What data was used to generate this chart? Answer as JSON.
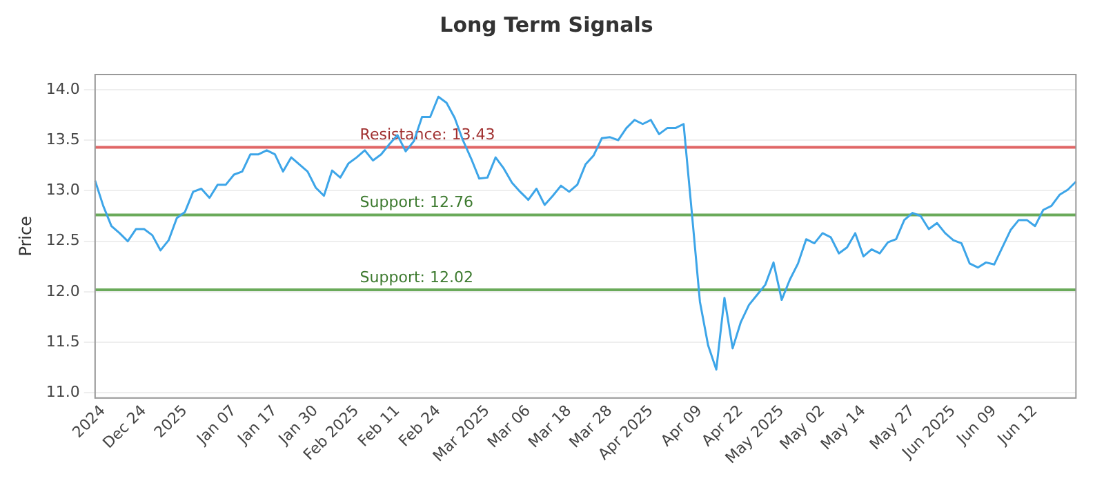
{
  "chart_data": {
    "type": "line",
    "title": "Long Term Signals",
    "ylabel": "Price",
    "categories": [
      null,
      "2024",
      null,
      null,
      null,
      null,
      "Dec 24",
      null,
      null,
      null,
      null,
      "2025",
      null,
      null,
      null,
      null,
      null,
      "Jan 07",
      null,
      null,
      null,
      null,
      "Jan 17",
      null,
      null,
      null,
      null,
      "Jan 30",
      null,
      null,
      null,
      null,
      "Feb 2025",
      null,
      null,
      null,
      null,
      "Feb 11",
      null,
      null,
      null,
      null,
      "Feb 24",
      null,
      null,
      null,
      null,
      null,
      "Mar 2025",
      null,
      null,
      null,
      null,
      "Mar 06",
      null,
      null,
      null,
      null,
      "Mar 18",
      null,
      null,
      null,
      null,
      "Mar 28",
      null,
      null,
      null,
      null,
      "Apr 2025",
      null,
      null,
      null,
      null,
      null,
      "Apr 09",
      null,
      null,
      null,
      null,
      "Apr 22",
      null,
      null,
      null,
      null,
      "May 2025",
      null,
      null,
      null,
      null,
      "May 02",
      null,
      null,
      null,
      null,
      "May 14",
      null,
      null,
      null,
      null,
      null,
      "May 27",
      null,
      null,
      null,
      null,
      "Jun 2025",
      null,
      null,
      null,
      null,
      "Jun 09",
      null,
      null,
      null,
      null,
      "Jun 12",
      null,
      null,
      null,
      null,
      null
    ],
    "series": [
      {
        "color": "#3da5e8",
        "values": [
          13.1,
          12.85,
          12.65,
          12.58,
          12.5,
          12.62,
          12.62,
          12.56,
          12.41,
          12.51,
          12.73,
          12.79,
          12.99,
          13.02,
          12.93,
          13.06,
          13.06,
          13.16,
          13.19,
          13.36,
          13.36,
          13.4,
          13.36,
          13.19,
          13.33,
          13.26,
          13.19,
          13.03,
          12.95,
          13.2,
          13.13,
          13.27,
          13.33,
          13.4,
          13.3,
          13.36,
          13.46,
          13.55,
          13.39,
          13.49,
          13.73,
          13.73,
          13.93,
          13.87,
          13.72,
          13.5,
          13.32,
          13.12,
          13.13,
          13.33,
          13.22,
          13.08,
          12.99,
          12.91,
          13.02,
          12.86,
          12.95,
          13.05,
          12.99,
          13.06,
          13.26,
          13.35,
          13.52,
          13.53,
          13.5,
          13.62,
          13.7,
          13.66,
          13.7,
          13.56,
          13.62,
          13.62,
          13.66,
          12.79,
          11.9,
          11.47,
          11.23,
          11.94,
          11.44,
          11.7,
          11.87,
          11.97,
          12.07,
          12.29,
          11.92,
          12.12,
          12.28,
          12.52,
          12.48,
          12.58,
          12.54,
          12.38,
          12.44,
          12.58,
          12.35,
          12.42,
          12.38,
          12.49,
          12.52,
          12.71,
          12.78,
          12.75,
          12.62,
          12.68,
          12.58,
          12.51,
          12.48,
          12.28,
          12.24,
          12.29,
          12.27,
          12.44,
          12.61,
          12.71,
          12.71,
          12.65,
          12.81,
          12.85,
          12.96,
          13.01,
          13.09
        ]
      }
    ],
    "ylim": [
      10.95,
      14.15
    ],
    "yticks": [
      {
        "value": 11,
        "label": "11.0"
      },
      {
        "value": 11.5,
        "label": "11.5"
      },
      {
        "value": 12,
        "label": "12.0"
      },
      {
        "value": 12.5,
        "label": "12.5"
      },
      {
        "value": 13,
        "label": "13.0"
      },
      {
        "value": 13.5,
        "label": "13.5"
      },
      {
        "value": 14,
        "label": "14.0"
      }
    ],
    "grid": "y",
    "legend": false,
    "marker": "none",
    "line_style": "solid",
    "ref_lines": [
      {
        "axis": "y",
        "value": 13.43,
        "label": "Resistance: 13.43",
        "color": "#e06666"
      },
      {
        "axis": "y",
        "value": 12.76,
        "label": "Support: 12.76",
        "color": "#6aaa5a"
      },
      {
        "axis": "y",
        "value": 12.02,
        "label": "Support: 12.02",
        "color": "#6aaa5a"
      }
    ]
  }
}
